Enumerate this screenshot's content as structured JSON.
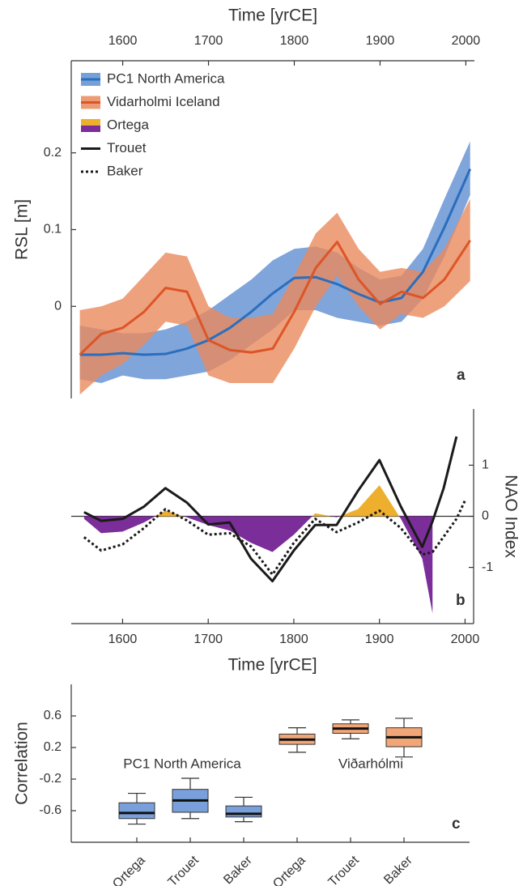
{
  "chart_data": [
    {
      "type": "line",
      "xlabel": "Time [yrCE]",
      "ylabel": "RSL [m]",
      "annotation": "a",
      "legend": "upper left",
      "xlim": [
        1540,
        2010
      ],
      "ylim": [
        -0.12,
        0.32
      ],
      "xticks": [
        1600,
        1700,
        1800,
        1900,
        2000
      ],
      "yticks": [
        0,
        0.1,
        0.2
      ],
      "x": [
        1550,
        1575,
        1600,
        1625,
        1650,
        1675,
        1700,
        1725,
        1750,
        1775,
        1800,
        1825,
        1850,
        1875,
        1900,
        1925,
        1950,
        1975,
        2005
      ],
      "series": [
        {
          "name": "PC1 North America",
          "color": "#2a6ebd",
          "band_color": "#5f8fd2",
          "values": [
            -0.063,
            -0.063,
            -0.061,
            -0.063,
            -0.062,
            -0.055,
            -0.044,
            -0.028,
            -0.007,
            0.017,
            0.037,
            0.038,
            0.029,
            0.016,
            0.005,
            0.011,
            0.045,
            0.103,
            0.179
          ],
          "upper": [
            -0.025,
            -0.03,
            -0.035,
            -0.035,
            -0.03,
            -0.02,
            -0.005,
            0.015,
            0.035,
            0.06,
            0.075,
            0.078,
            0.07,
            0.05,
            0.035,
            0.04,
            0.075,
            0.14,
            0.215
          ],
          "lower": [
            -0.095,
            -0.1,
            -0.09,
            -0.095,
            -0.095,
            -0.09,
            -0.085,
            -0.07,
            -0.05,
            -0.03,
            -0.005,
            -0.005,
            -0.015,
            -0.02,
            -0.025,
            -0.02,
            0.01,
            0.065,
            0.145
          ]
        },
        {
          "name": "Vidarholmi Iceland",
          "color": "#dd5527",
          "band_color": "#ea8a5c",
          "values": [
            -0.063,
            -0.036,
            -0.028,
            -0.007,
            0.024,
            0.019,
            -0.044,
            -0.057,
            -0.06,
            -0.055,
            -0.007,
            0.05,
            0.084,
            0.035,
            0.003,
            0.019,
            0.011,
            0.035,
            0.086
          ],
          "upper": [
            -0.005,
            0.0,
            0.01,
            0.04,
            0.07,
            0.065,
            0.0,
            -0.015,
            -0.015,
            -0.01,
            0.04,
            0.095,
            0.122,
            0.075,
            0.045,
            0.05,
            0.045,
            0.075,
            0.14
          ],
          "lower": [
            -0.115,
            -0.09,
            -0.075,
            -0.05,
            -0.02,
            -0.025,
            -0.09,
            -0.1,
            -0.1,
            -0.1,
            -0.055,
            0.0,
            0.04,
            0.0,
            -0.03,
            -0.01,
            -0.015,
            0.0,
            0.033
          ]
        }
      ]
    },
    {
      "type": "line",
      "xlabel": "Time [yrCE]",
      "ylabel": "NAO Index",
      "annotation": "b",
      "y_axis_side": "right",
      "xlim": [
        1540,
        2010
      ],
      "ylim": [
        -2.1,
        2.1
      ],
      "xticks": [
        1600,
        1700,
        1800,
        1900,
        2000
      ],
      "yticks": [
        -1,
        0,
        1
      ],
      "x": [
        1555,
        1575,
        1600,
        1625,
        1650,
        1675,
        1700,
        1725,
        1750,
        1775,
        1800,
        1825,
        1850,
        1875,
        1900,
        1925,
        1950,
        1962,
        1975,
        1990,
        2000
      ],
      "series": [
        {
          "name": "Ortega",
          "kind": "area",
          "color": "#eeaf2e",
          "negative_color": "#7b2e99",
          "values": [
            -0.05,
            -0.33,
            -0.3,
            -0.12,
            0.11,
            -0.02,
            -0.17,
            -0.28,
            -0.52,
            -0.7,
            -0.36,
            0.06,
            -0.02,
            0.14,
            0.61,
            -0.05,
            -0.83,
            -1.9,
            null,
            null,
            null
          ]
        },
        {
          "name": "Trouet",
          "kind": "solid",
          "color": "#1a1a1a",
          "values": [
            0.08,
            -0.09,
            -0.05,
            0.19,
            0.55,
            0.27,
            -0.16,
            -0.12,
            -0.83,
            -1.27,
            -0.67,
            -0.17,
            -0.17,
            0.5,
            1.1,
            0.19,
            -0.6,
            -0.1,
            0.55,
            1.56,
            null
          ]
        },
        {
          "name": "Baker",
          "kind": "dotted",
          "color": "#1a1a1a",
          "values": [
            -0.41,
            -0.67,
            -0.55,
            -0.23,
            0.14,
            -0.08,
            -0.36,
            -0.33,
            -0.59,
            -1.14,
            -0.52,
            -0.05,
            -0.31,
            -0.12,
            0.11,
            -0.23,
            -0.75,
            -0.7,
            -0.4,
            -0.05,
            0.31
          ]
        }
      ]
    },
    {
      "type": "box",
      "ylabel": "Correlation",
      "annotation": "c",
      "ylim": [
        -1,
        1
      ],
      "yticks": [
        -0.6,
        -0.2,
        0.2,
        0.6
      ],
      "categories": [
        "Ortega",
        "Trouet",
        "Baker",
        "Ortega",
        "Trouet",
        "Baker"
      ],
      "series": [
        {
          "name": "PC1 North America",
          "color": "#7aa0dc",
          "boxes": [
            {
              "min": -0.77,
              "q1": -0.7,
              "median": -0.63,
              "q3": -0.5,
              "max": -0.38
            },
            {
              "min": -0.7,
              "q1": -0.62,
              "median": -0.47,
              "q3": -0.33,
              "max": -0.19
            },
            {
              "min": -0.74,
              "q1": -0.68,
              "median": -0.64,
              "q3": -0.54,
              "max": -0.43
            }
          ]
        },
        {
          "name": "Viðarhólmi",
          "color": "#f2a677",
          "boxes": [
            {
              "min": 0.14,
              "q1": 0.24,
              "median": 0.3,
              "q3": 0.37,
              "max": 0.45
            },
            {
              "min": 0.31,
              "q1": 0.38,
              "median": 0.44,
              "q3": 0.5,
              "max": 0.55
            },
            {
              "min": 0.08,
              "q1": 0.21,
              "median": 0.33,
              "q3": 0.45,
              "max": 0.57
            }
          ]
        }
      ]
    }
  ]
}
